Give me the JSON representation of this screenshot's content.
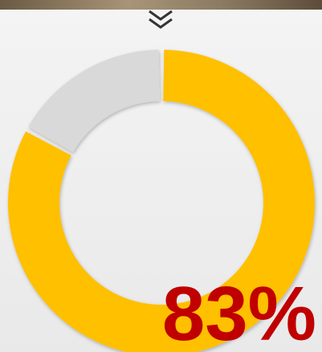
{
  "chart_data": {
    "type": "donut",
    "values": [
      83,
      17
    ],
    "value_labels": [
      "83%",
      null
    ],
    "colors": [
      "#FFC000",
      "#D9D9D9"
    ]
  }
}
